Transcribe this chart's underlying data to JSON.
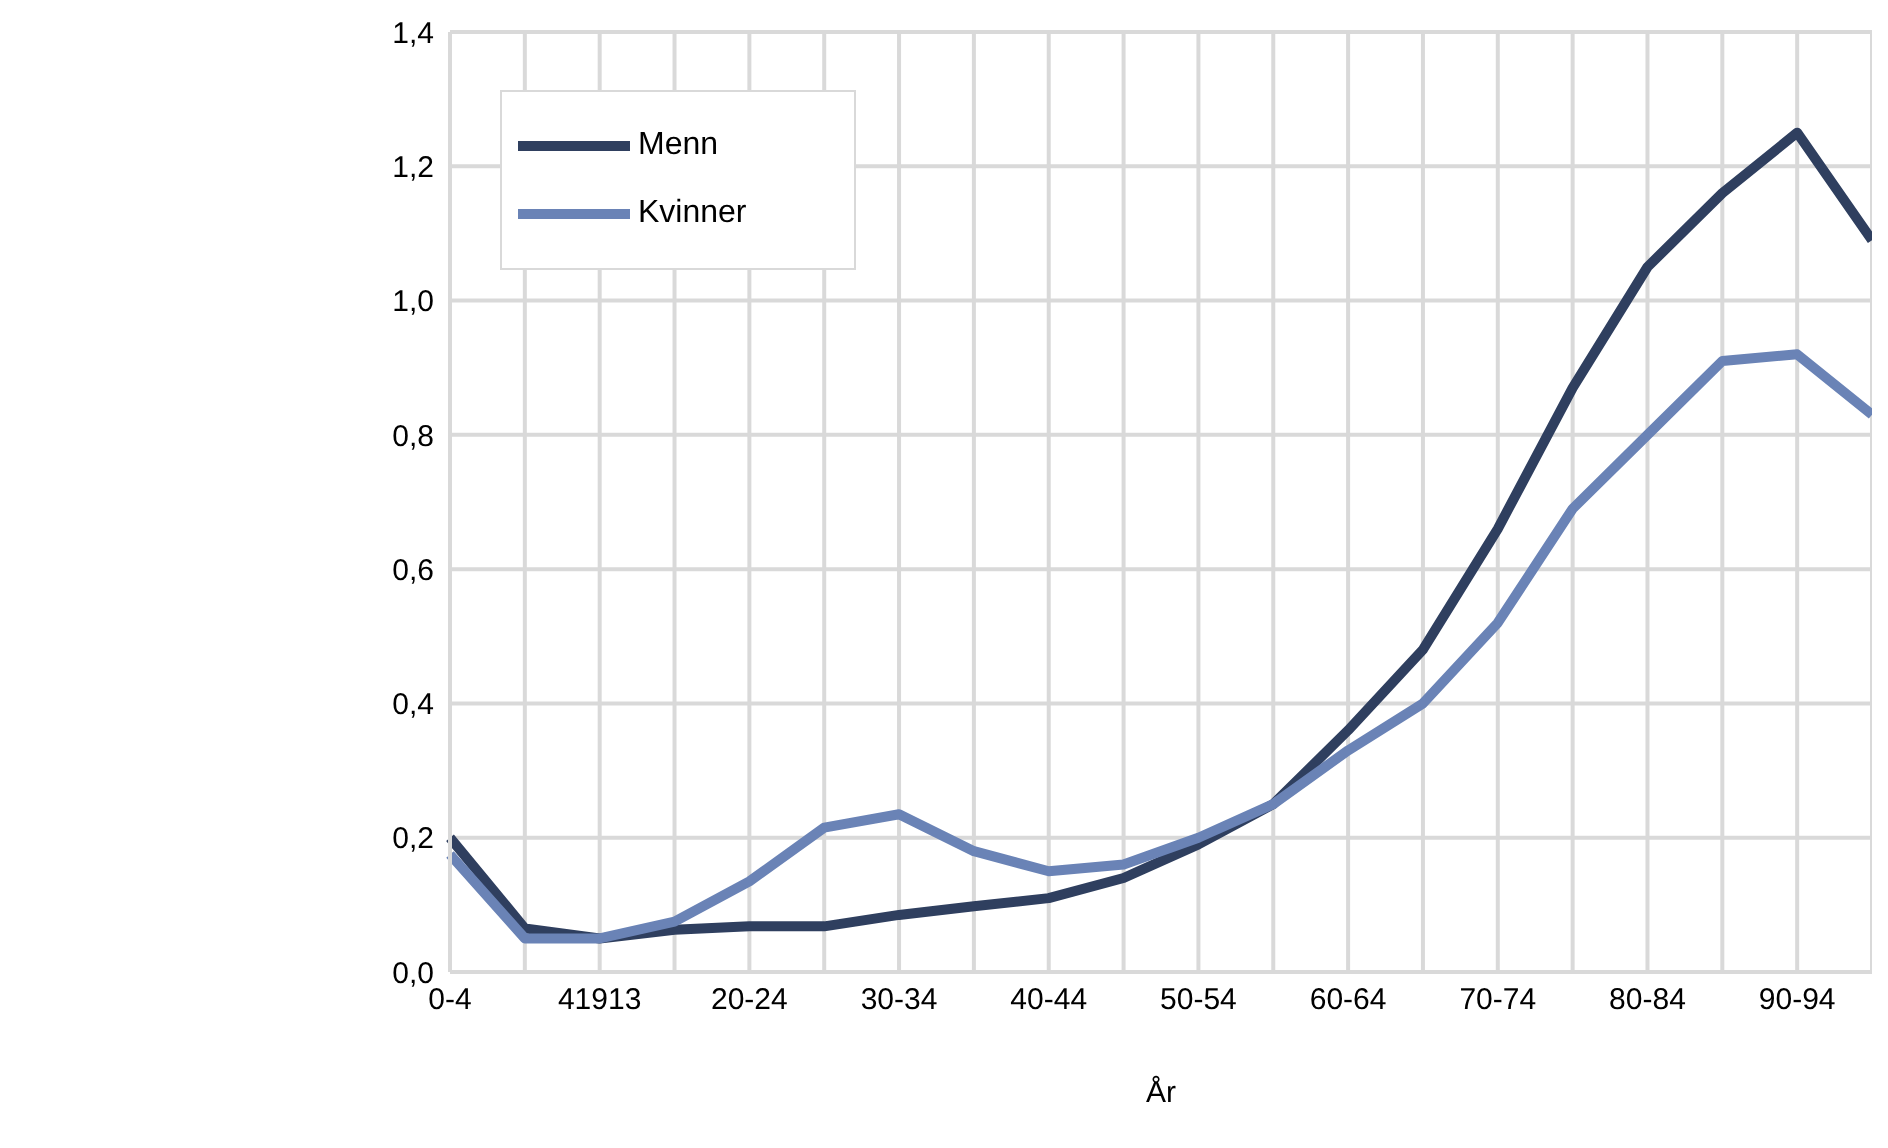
{
  "chart_data": {
    "type": "line",
    "xlabel": "År",
    "categories": [
      "0-4",
      null,
      "41913",
      null,
      "20-24",
      null,
      "30-34",
      null,
      "40-44",
      null,
      "50-54",
      null,
      "60-64",
      null,
      "70-74",
      null,
      "80-84",
      null,
      "90-94",
      null
    ],
    "series": [
      {
        "name": "Menn",
        "color": "#2f3f5f",
        "values": [
          0.2,
          0.065,
          0.05,
          0.063,
          0.068,
          0.068,
          0.085,
          0.098,
          0.11,
          0.14,
          0.19,
          0.25,
          0.36,
          0.48,
          0.66,
          0.87,
          1.05,
          1.16,
          1.25,
          1.09
        ]
      },
      {
        "name": "Kvinner",
        "color": "#6a83b6",
        "values": [
          0.175,
          0.05,
          0.05,
          0.075,
          0.135,
          0.215,
          0.235,
          0.18,
          0.15,
          0.16,
          0.2,
          0.25,
          0.33,
          0.4,
          0.52,
          0.69,
          0.8,
          0.91,
          0.92,
          0.83
        ]
      }
    ],
    "ylim": [
      0,
      1.4
    ],
    "yticks": [
      {
        "value": 0,
        "label": "0,0"
      },
      {
        "value": 0.2,
        "label": "0,2"
      },
      {
        "value": 0.4,
        "label": "0,4"
      },
      {
        "value": 0.6,
        "label": "0,6"
      },
      {
        "value": 0.8,
        "label": "0,8"
      },
      {
        "value": 1,
        "label": "1,0"
      },
      {
        "value": 1.2,
        "label": "1,2"
      },
      {
        "value": 1.4,
        "label": "1,4"
      }
    ],
    "grid": true,
    "legend": "top left",
    "marker": "none",
    "line_style": "solid"
  }
}
